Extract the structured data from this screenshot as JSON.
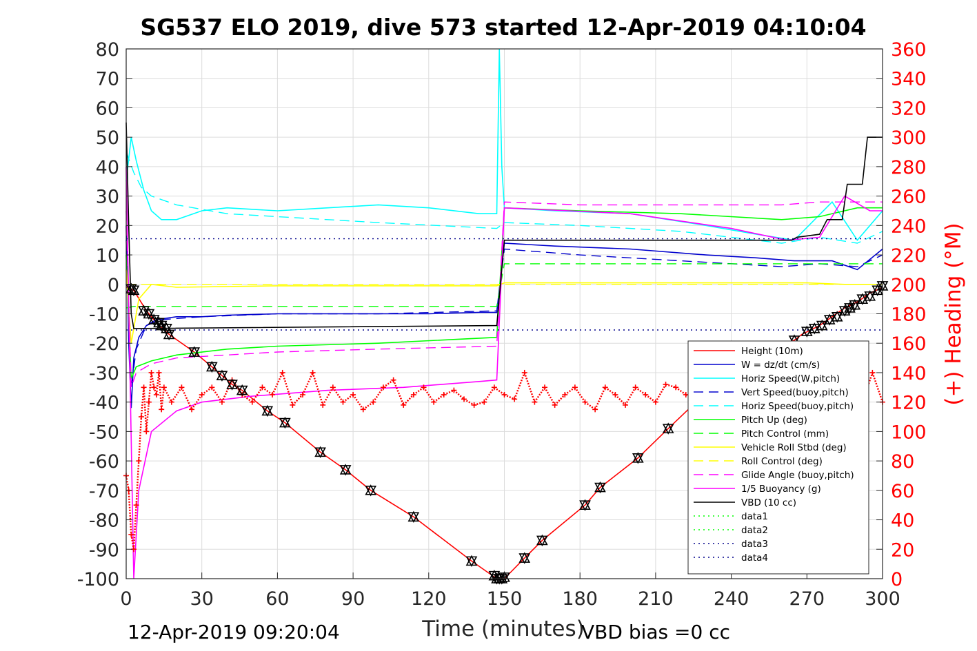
{
  "chart_data": {
    "type": "line",
    "title": "SG537 ELO 2019, dive 573 started 12-Apr-2019 04:10:04",
    "xlabel": "Time (minutes)",
    "ylabel_right": "(+) Heading (°M)",
    "xlim": [
      0,
      300
    ],
    "ylim_left": [
      -100,
      80
    ],
    "ylim_right": [
      0,
      360
    ],
    "x_ticks": [
      "0",
      "30",
      "60",
      "90",
      "120",
      "150",
      "180",
      "210",
      "240",
      "270",
      "300"
    ],
    "y_ticks_left": [
      "80",
      "70",
      "60",
      "50",
      "40",
      "30",
      "20",
      "10",
      "0",
      "-10",
      "-20",
      "-30",
      "-40",
      "-50",
      "-60",
      "-70",
      "-80",
      "-90",
      "-100"
    ],
    "y_ticks_right": [
      "360",
      "340",
      "320",
      "300",
      "280",
      "260",
      "240",
      "220",
      "200",
      "180",
      "160",
      "140",
      "120",
      "100",
      "80",
      "60",
      "40",
      "20",
      "0"
    ],
    "grid": true,
    "legend_position": "lower-right",
    "footer_left": "12-Apr-2019 09:20:04",
    "footer_right": "VBD bias =0 cc",
    "series": [
      {
        "name": "Height (10m)",
        "color": "#ff0000",
        "style": "solid",
        "x": [
          0,
          3,
          8,
          12,
          17,
          27,
          34,
          38,
          42,
          46,
          56,
          63,
          77,
          87,
          97,
          114,
          137,
          147,
          150,
          158,
          165,
          182,
          188,
          203,
          215,
          226,
          238,
          250,
          265,
          268,
          275,
          280,
          285,
          290,
          295,
          300
        ],
        "y": [
          -1,
          -2,
          -9,
          -13,
          -17,
          -23,
          -28,
          -31,
          -34,
          -36,
          -43,
          -47,
          -57,
          -63,
          -70,
          -79,
          -94,
          -100,
          -100,
          -93,
          -87,
          -75,
          -69,
          -59,
          -49,
          -40,
          -32,
          -24,
          -19,
          -17,
          -14,
          -11,
          -8,
          -6,
          -3,
          -1
        ]
      },
      {
        "name": "W = dz/dt (cm/s)",
        "color": "#0000cd",
        "style": "solid",
        "x": [
          0,
          1,
          2,
          3,
          5,
          8,
          12,
          20,
          30,
          40,
          60,
          80,
          100,
          120,
          140,
          147,
          150,
          170,
          200,
          230,
          250,
          265,
          280,
          290,
          300
        ],
        "y": [
          20,
          -20,
          -42,
          -25,
          -18,
          -14,
          -12,
          -11,
          -11,
          -10.5,
          -10,
          -10,
          -10,
          -10,
          -9.5,
          -9.5,
          14,
          13,
          12,
          10,
          9,
          8,
          8,
          5,
          12
        ]
      },
      {
        "name": "Horiz Speed(W,pitch)",
        "color": "#00ffff",
        "style": "solid",
        "x": [
          0,
          2,
          4,
          7,
          10,
          14,
          20,
          30,
          40,
          60,
          80,
          100,
          120,
          140,
          147,
          148,
          149,
          150,
          170,
          200,
          230,
          250,
          265,
          280,
          290,
          300
        ],
        "y": [
          35,
          50,
          42,
          32,
          25,
          22,
          22,
          25,
          26,
          25,
          26,
          27,
          26,
          24,
          24,
          80,
          40,
          26,
          25,
          24,
          20,
          17,
          15,
          28,
          15,
          25
        ]
      },
      {
        "name": "Vert Speed(buoy,pitch)",
        "color": "#0000cd",
        "style": "dashed",
        "x": [
          0,
          2,
          4,
          8,
          14,
          30,
          60,
          100,
          147,
          150,
          180,
          220,
          260,
          275,
          290,
          300
        ],
        "y": [
          15,
          -35,
          -22,
          -14,
          -12,
          -11,
          -10,
          -10,
          -9,
          12,
          10,
          8,
          6,
          7,
          6,
          10
        ]
      },
      {
        "name": "Horiz Speed(buoy,pitch)",
        "color": "#00ffff",
        "style": "dashed",
        "x": [
          0,
          3,
          6,
          10,
          20,
          40,
          60,
          100,
          147,
          150,
          180,
          220,
          260,
          275,
          290,
          300
        ],
        "y": [
          45,
          38,
          33,
          30,
          27,
          24,
          23,
          21,
          19,
          21,
          20,
          18,
          14,
          16,
          14,
          18
        ]
      },
      {
        "name": "Pitch Up (deg)",
        "color": "#00ff00",
        "style": "solid",
        "x": [
          0,
          2,
          4,
          10,
          20,
          40,
          60,
          100,
          147,
          150,
          180,
          220,
          260,
          275,
          290,
          300
        ],
        "y": [
          10,
          -32,
          -28,
          -26,
          -24,
          -22,
          -21,
          -20,
          -18,
          26,
          25,
          24,
          22,
          23,
          26,
          26
        ]
      },
      {
        "name": "Pitch Control (mm)",
        "color": "#00ff00",
        "style": "dashed",
        "x": [
          0,
          3,
          147,
          150,
          300
        ],
        "y": [
          -8,
          -7.5,
          -7.5,
          7,
          7
        ]
      },
      {
        "name": "Vehicle Roll Stbd (deg)",
        "color": "#ffff00",
        "style": "solid",
        "x": [
          0,
          2,
          5,
          10,
          20,
          60,
          100,
          147,
          150,
          200,
          250,
          270,
          285,
          300
        ],
        "y": [
          5,
          -20,
          -5,
          0,
          -1,
          -0.5,
          -0.5,
          -0.5,
          0.5,
          0.5,
          0.5,
          0.5,
          0,
          0
        ]
      },
      {
        "name": "Roll Control (deg)",
        "color": "#ffff00",
        "style": "dashed",
        "x": [
          0,
          300
        ],
        "y": [
          0,
          0
        ]
      },
      {
        "name": "Glide Angle (buoy,pitch)",
        "color": "#ff00ff",
        "style": "dashed",
        "x": [
          0,
          2,
          4,
          10,
          20,
          40,
          60,
          100,
          147,
          150,
          180,
          220,
          260,
          275,
          290,
          300
        ],
        "y": [
          25,
          -35,
          -30,
          -27,
          -25,
          -24,
          -23,
          -22,
          -21,
          28,
          27,
          27,
          27,
          28,
          28,
          28
        ]
      },
      {
        "name": "1/5 Buoyancy (g)",
        "color": "#ff00ff",
        "style": "solid",
        "x": [
          0,
          3,
          5,
          10,
          20,
          30,
          50,
          80,
          110,
          140,
          147,
          150,
          200,
          240,
          262,
          275,
          285,
          295,
          300
        ],
        "y": [
          40,
          -100,
          -70,
          -50,
          -43,
          -40,
          -38,
          -36,
          -35,
          -33,
          -32.5,
          26,
          24,
          19,
          15,
          16,
          30,
          25,
          25
        ]
      },
      {
        "name": "VBD (10 cc)",
        "color": "#000000",
        "style": "solid",
        "x": [
          0,
          1,
          2,
          3,
          147,
          150,
          264,
          266,
          275,
          278,
          284,
          286,
          292,
          294,
          300
        ],
        "y": [
          55,
          20,
          -10,
          -15,
          -14,
          15,
          15,
          16,
          17,
          22,
          22,
          34,
          34,
          50,
          50
        ]
      },
      {
        "name": "data1",
        "color": "#00ff00",
        "style": "dotted",
        "x": [],
        "y": []
      },
      {
        "name": "data2",
        "color": "#00ff00",
        "style": "dotted",
        "x": [],
        "y": []
      },
      {
        "name": "data3",
        "color": "#00008b",
        "style": "dotted",
        "x": [
          0,
          300
        ],
        "y": [
          15.5,
          15.5
        ]
      },
      {
        "name": "data4",
        "color": "#00008b",
        "style": "dotted",
        "x": [
          0,
          300
        ],
        "y": [
          -15.5,
          -15.5
        ]
      }
    ],
    "heading": {
      "color": "#ff0000",
      "marker": "+",
      "axis": "right",
      "x": [
        0,
        1,
        2,
        3,
        4,
        5,
        6,
        7,
        8,
        9,
        10,
        11,
        12,
        13,
        14,
        15,
        18,
        22,
        26,
        30,
        34,
        38,
        42,
        46,
        50,
        54,
        58,
        62,
        66,
        70,
        74,
        78,
        82,
        86,
        90,
        94,
        98,
        102,
        106,
        110,
        114,
        118,
        122,
        126,
        130,
        134,
        138,
        142,
        146,
        150,
        154,
        158,
        162,
        166,
        170,
        174,
        178,
        182,
        186,
        190,
        194,
        198,
        202,
        206,
        210,
        214,
        218,
        222,
        226,
        230,
        234,
        238,
        242,
        246,
        250,
        254,
        258,
        262,
        266,
        270,
        274,
        278,
        282,
        285,
        288,
        292,
        296,
        300
      ],
      "y": [
        70,
        60,
        30,
        20,
        50,
        80,
        110,
        130,
        100,
        120,
        140,
        130,
        125,
        140,
        115,
        130,
        120,
        130,
        115,
        125,
        130,
        120,
        135,
        125,
        120,
        130,
        125,
        140,
        118,
        125,
        140,
        118,
        130,
        120,
        125,
        115,
        120,
        130,
        135,
        118,
        125,
        130,
        120,
        125,
        128,
        122,
        118,
        120,
        130,
        125,
        122,
        140,
        120,
        130,
        118,
        125,
        130,
        120,
        115,
        130,
        125,
        118,
        130,
        125,
        120,
        132,
        130,
        125,
        122,
        120,
        130,
        128,
        125,
        120,
        128,
        120,
        130,
        125,
        122,
        125,
        130,
        140,
        155,
        130,
        100,
        120,
        140,
        120
      ]
    },
    "markers": {
      "color": "#000000",
      "symbol": "triangle-pair",
      "x": [
        2,
        3,
        7,
        9,
        11,
        13,
        14,
        16,
        17,
        27,
        34,
        38,
        42,
        46,
        56,
        63,
        77,
        87,
        97,
        114,
        137,
        146,
        147,
        148,
        149,
        150,
        158,
        165,
        182,
        188,
        203,
        215,
        265,
        270,
        273,
        276,
        279,
        282,
        285,
        287,
        289,
        292,
        295,
        298,
        300
      ],
      "y": [
        -1.5,
        -2,
        -9,
        -10,
        -12,
        -13,
        -14,
        -15,
        -17,
        -23,
        -28,
        -31,
        -34,
        -36,
        -43,
        -47,
        -57,
        -63,
        -70,
        -79,
        -94,
        -99,
        -100,
        -100,
        -100,
        -99.5,
        -93,
        -87,
        -75,
        -69,
        -59,
        -49,
        -19,
        -16,
        -15,
        -14,
        -12,
        -11,
        -9,
        -8,
        -7,
        -5,
        -4,
        -2,
        -0.5
      ]
    }
  }
}
